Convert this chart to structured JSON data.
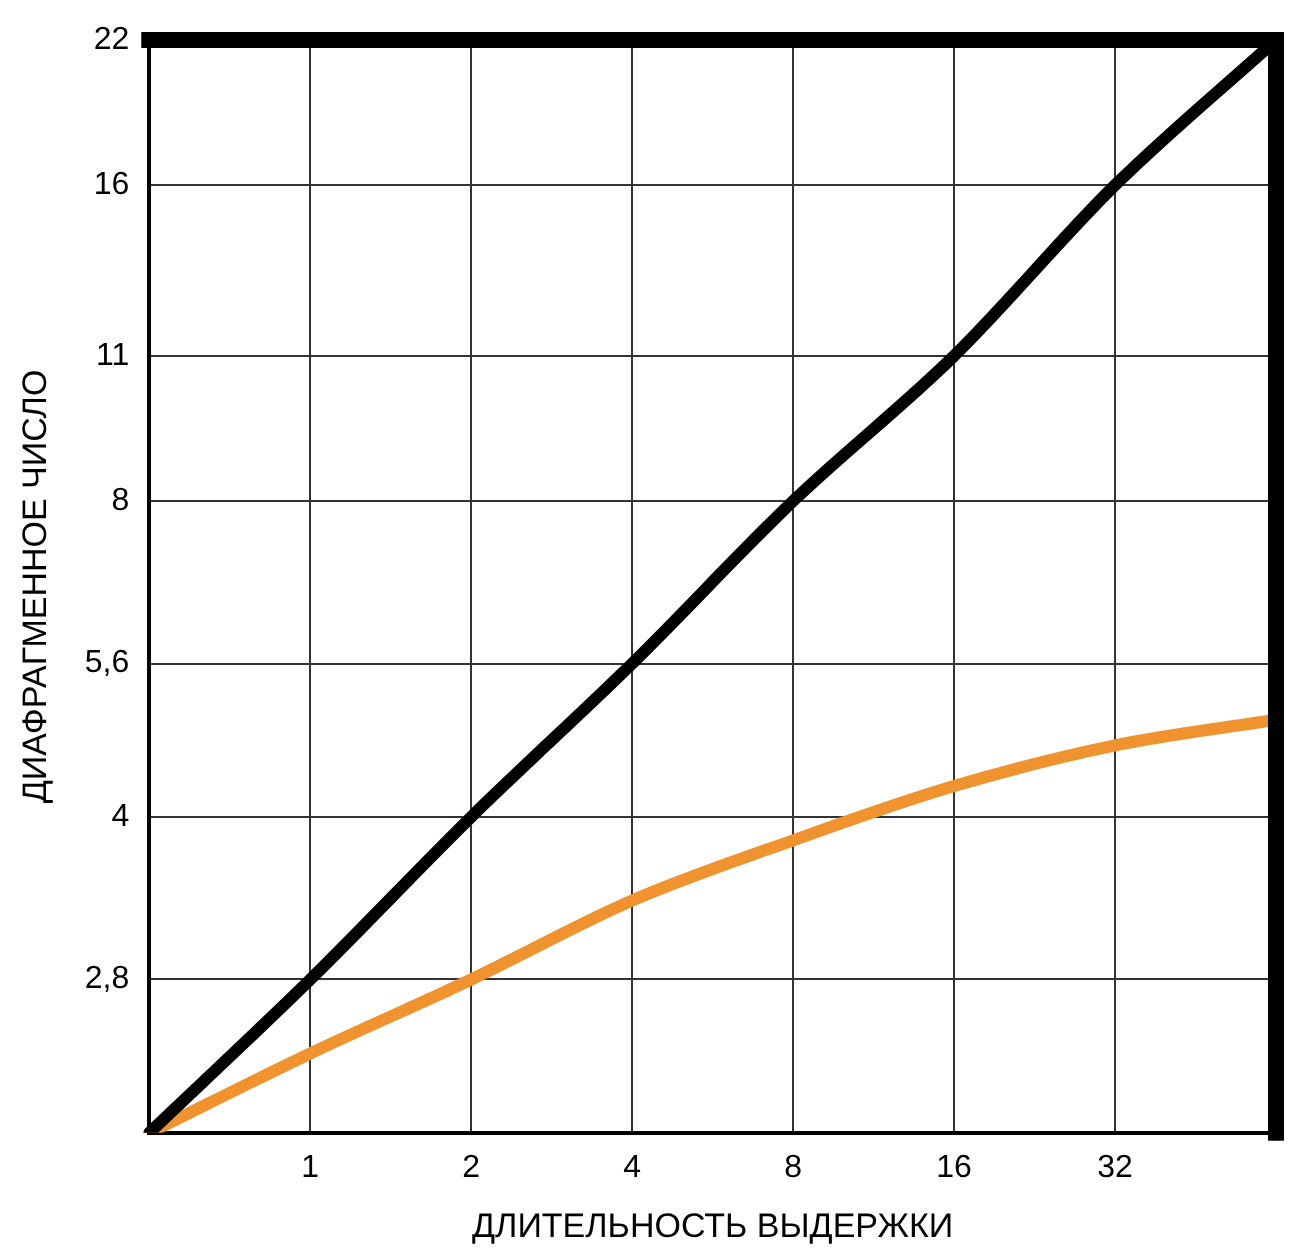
{
  "chart_data": {
    "type": "line",
    "xlabel": "ДЛИТЕЛЬНОСТЬ ВЫДЕРЖКИ",
    "ylabel": "ДИАФРАГМЕННОЕ ЧИСЛО",
    "categories": [
      null,
      "1",
      "2",
      "4",
      "8",
      "16",
      "32",
      null
    ],
    "series": [
      {
        "color": "#000000",
        "values": [
          2,
          2.8,
          4,
          5.6,
          8,
          11,
          16,
          22
        ]
      },
      {
        "color": "#f0922e",
        "values": [
          2,
          2.38,
          2.8,
          3.33,
          3.8,
          4.28,
          4.68,
          4.95
        ]
      }
    ],
    "log": "y",
    "ylim": [
      2,
      22
    ],
    "yticks": [
      {
        "value": 2,
        "label": null
      },
      {
        "value": 2.8,
        "label": "2,8"
      },
      4,
      {
        "value": 5.6,
        "label": "5,6"
      },
      8,
      11,
      16,
      22
    ],
    "grid": true,
    "legend": false,
    "marker": "none",
    "line_style": "solid"
  }
}
